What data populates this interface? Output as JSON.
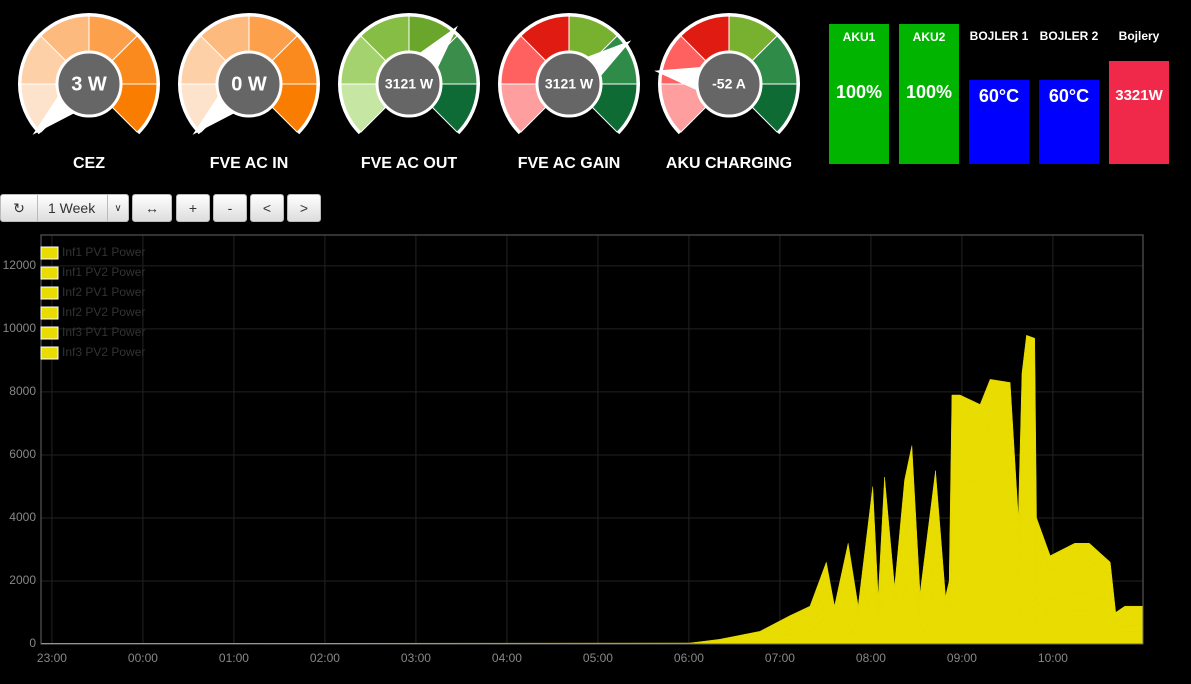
{
  "gauges": [
    {
      "value": "3 W",
      "label": "CEZ"
    },
    {
      "value": "0 W",
      "label": "FVE AC IN"
    },
    {
      "value": "3121 W",
      "label": "FVE AC OUT"
    },
    {
      "value": "3121 W",
      "label": "FVE AC GAIN"
    },
    {
      "value": "-52 A",
      "label": "AKU CHARGING"
    }
  ],
  "tiles": [
    {
      "label": "AKU1",
      "value": "100%"
    },
    {
      "label": "AKU2",
      "value": "100%"
    },
    {
      "label": "BOJLER 1",
      "value": "60°C"
    },
    {
      "label": "BOJLER 2",
      "value": "60°C"
    },
    {
      "label": "Bojlery",
      "value": "3321W"
    }
  ],
  "toolbar": {
    "range": "1 Week",
    "buttons": [
      "+",
      "-",
      "<",
      ">"
    ]
  },
  "chart_data": {
    "type": "area",
    "stacked": true,
    "x": [
      -0.12,
      7.01,
      7.34,
      7.78,
      8.11,
      8.33,
      8.51,
      8.6,
      8.75,
      8.86,
      9.02,
      9.08,
      9.15,
      9.26,
      9.37,
      9.45,
      9.54,
      9.71,
      9.82,
      9.86,
      9.89,
      9.98,
      10.2,
      10.31,
      10.53,
      10.62,
      10.66,
      10.71,
      10.8,
      10.82,
      10.97,
      11.24,
      11.4,
      11.63,
      11.69,
      11.79,
      11.99
    ],
    "series": [
      {
        "name": "Inf1 PV1 Power",
        "color": "#e8dc00",
        "values": [
          3,
          5,
          25,
          67,
          150,
          200,
          433,
          200,
          533,
          200,
          833,
          250,
          883,
          300,
          867,
          1050,
          267,
          917,
          250,
          333,
          1317,
          1317,
          1267,
          1400,
          1383,
          667,
          1433,
          1633,
          1617,
          667,
          467,
          533,
          533,
          433,
          167,
          200,
          200
        ]
      },
      {
        "name": "Inf1 PV2 Power",
        "color": "#e8dc00",
        "values": [
          3,
          5,
          25,
          67,
          150,
          200,
          433,
          200,
          533,
          200,
          833,
          250,
          883,
          300,
          867,
          1050,
          267,
          917,
          250,
          333,
          1317,
          1317,
          1267,
          1400,
          1383,
          667,
          1433,
          1633,
          1617,
          667,
          467,
          533,
          533,
          433,
          167,
          200,
          200
        ]
      },
      {
        "name": "Inf2 PV1 Power",
        "color": "#e8dc00",
        "values": [
          3,
          5,
          25,
          67,
          150,
          200,
          433,
          200,
          533,
          200,
          833,
          250,
          883,
          300,
          867,
          1050,
          267,
          917,
          250,
          333,
          1317,
          1317,
          1267,
          1400,
          1383,
          667,
          1433,
          1633,
          1617,
          667,
          467,
          533,
          533,
          433,
          167,
          200,
          200
        ]
      },
      {
        "name": "Inf2 PV2 Power",
        "color": "#e8dc00",
        "values": [
          3,
          5,
          25,
          67,
          150,
          200,
          433,
          200,
          533,
          200,
          833,
          250,
          883,
          300,
          867,
          1050,
          267,
          917,
          250,
          333,
          1317,
          1317,
          1267,
          1400,
          1383,
          667,
          1433,
          1633,
          1617,
          667,
          467,
          533,
          533,
          433,
          167,
          200,
          200
        ]
      },
      {
        "name": "Inf3 PV1 Power",
        "color": "#e8dc00",
        "values": [
          3,
          5,
          25,
          67,
          150,
          200,
          433,
          200,
          533,
          200,
          833,
          250,
          883,
          300,
          867,
          1050,
          267,
          917,
          250,
          333,
          1317,
          1317,
          1267,
          1400,
          1383,
          667,
          1433,
          1633,
          1617,
          667,
          467,
          533,
          533,
          433,
          167,
          200,
          200
        ]
      },
      {
        "name": "Inf3 PV2 Power",
        "color": "#e8dc00",
        "values": [
          3,
          5,
          25,
          67,
          150,
          200,
          433,
          200,
          533,
          200,
          833,
          250,
          883,
          300,
          867,
          1050,
          267,
          917,
          250,
          333,
          1317,
          1317,
          1267,
          1400,
          1383,
          667,
          1433,
          1633,
          1617,
          667,
          467,
          533,
          533,
          433,
          167,
          200,
          200
        ]
      }
    ],
    "xlim": [
      -0.12,
      11.99
    ],
    "xticks": [
      {
        "value": 0,
        "label": "23:00"
      },
      {
        "value": 1,
        "label": "00:00"
      },
      {
        "value": 2,
        "label": "01:00"
      },
      {
        "value": 3,
        "label": "02:00"
      },
      {
        "value": 4,
        "label": "03:00"
      },
      {
        "value": 5,
        "label": "04:00"
      },
      {
        "value": 6,
        "label": "05:00"
      },
      {
        "value": 7,
        "label": "06:00"
      },
      {
        "value": 8,
        "label": "07:00"
      },
      {
        "value": 9,
        "label": "08:00"
      },
      {
        "value": 10,
        "label": "09:00"
      },
      {
        "value": 11,
        "label": "10:00"
      }
    ],
    "ylim": [
      0,
      12980
    ],
    "yticks": [
      0,
      2000,
      4000,
      6000,
      8000,
      10000,
      12000
    ],
    "grid": true,
    "legend": "top-left"
  }
}
